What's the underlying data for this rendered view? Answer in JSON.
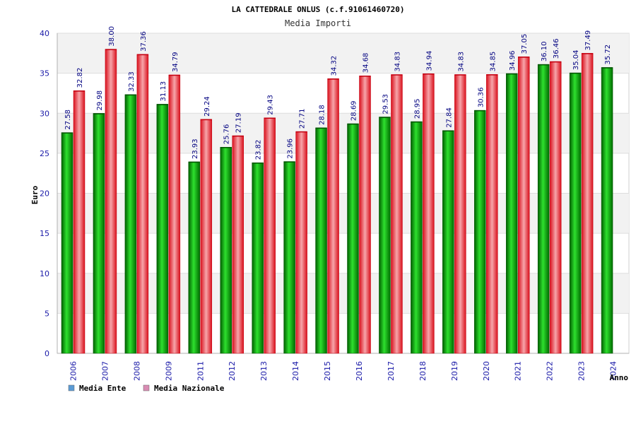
{
  "chart_data": {
    "type": "bar",
    "title": "LA CATTEDRALE ONLUS (c.f.91061460720)",
    "subtitle": "Media Importi",
    "xlabel": "Anno",
    "ylabel": "Euro",
    "ylim": [
      0,
      40
    ],
    "yticks": [
      "0",
      "5",
      "10",
      "15",
      "20",
      "25",
      "30",
      "35",
      "40"
    ],
    "grid": true,
    "legend_position": "bottom-left",
    "categories": [
      "2006",
      "2007",
      "2008",
      "2009",
      "2011",
      "2012",
      "2013",
      "2014",
      "2015",
      "2016",
      "2017",
      "2018",
      "2019",
      "2020",
      "2021",
      "2022",
      "2023",
      "2024"
    ],
    "series": [
      {
        "name": "Media Ente",
        "color": "#00aa00",
        "legend_color": "#5b9bd5",
        "values": [
          27.58,
          29.98,
          32.33,
          31.13,
          23.93,
          25.76,
          23.82,
          23.96,
          28.18,
          28.69,
          29.53,
          28.95,
          27.84,
          30.36,
          34.96,
          36.1,
          35.04,
          35.72
        ],
        "labels": [
          "27.58",
          "29.98",
          "32.33",
          "31.13",
          "23.93",
          "25.76",
          "23.82",
          "23.96",
          "28.18",
          "28.69",
          "29.53",
          "28.95",
          "27.84",
          "30.36",
          "34.96",
          "36.10",
          "35.04",
          "35.72"
        ]
      },
      {
        "name": "Media Nazionale",
        "color": "#e8101e",
        "legend_color": "#d98cb3",
        "values": [
          32.82,
          38.0,
          37.36,
          34.79,
          29.24,
          27.19,
          29.43,
          27.71,
          34.32,
          34.68,
          34.83,
          34.94,
          34.83,
          34.85,
          37.05,
          36.46,
          37.49,
          null
        ],
        "labels": [
          "32.82",
          "38.00",
          "37.36",
          "34.79",
          "29.24",
          "27.19",
          "29.43",
          "27.71",
          "34.32",
          "34.68",
          "34.83",
          "34.94",
          "34.83",
          "34.85",
          "37.05",
          "36.46",
          "37.49",
          null
        ]
      }
    ]
  }
}
